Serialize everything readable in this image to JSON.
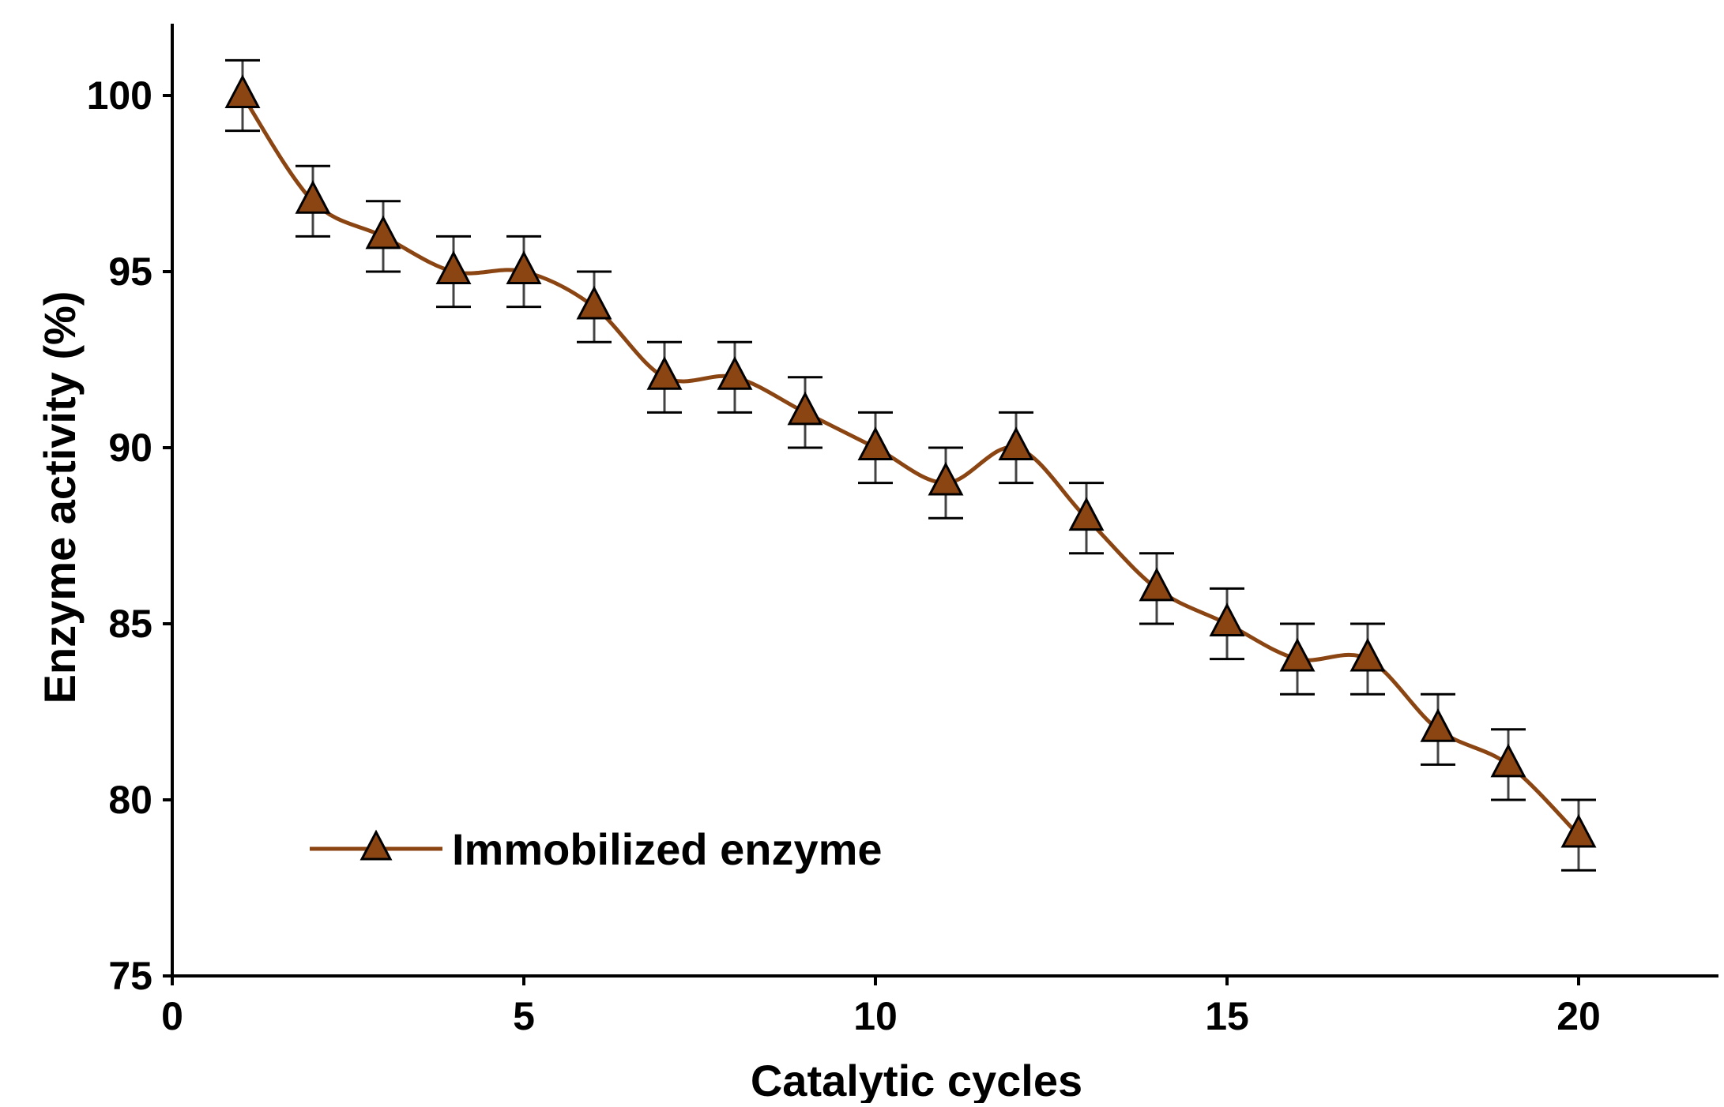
{
  "chart_data": {
    "type": "line",
    "title": "",
    "xlabel": "Catalytic cycles",
    "ylabel": "Enzyme activity (%)",
    "xlim": [
      0,
      22
    ],
    "ylim": [
      75,
      102
    ],
    "xticks": [
      0,
      5,
      10,
      15,
      20
    ],
    "yticks": [
      75,
      80,
      85,
      90,
      95,
      100
    ],
    "grid": false,
    "legend": "bottom-left",
    "series": [
      {
        "name": "Immobilized enzyme",
        "color": "#8B4513",
        "marker": "triangle",
        "x": [
          1,
          2,
          3,
          4,
          5,
          6,
          7,
          8,
          9,
          10,
          11,
          12,
          13,
          14,
          15,
          16,
          17,
          18,
          19,
          20
        ],
        "y": [
          100,
          97,
          96,
          95,
          95,
          94,
          92,
          92,
          91,
          90,
          89,
          90,
          88,
          86,
          85,
          84,
          84,
          82,
          81,
          79
        ],
        "error": [
          1,
          1,
          1,
          1,
          1,
          1,
          1,
          1,
          1,
          1,
          1,
          1,
          1,
          1,
          1,
          1,
          1,
          1,
          1,
          1
        ]
      }
    ]
  }
}
